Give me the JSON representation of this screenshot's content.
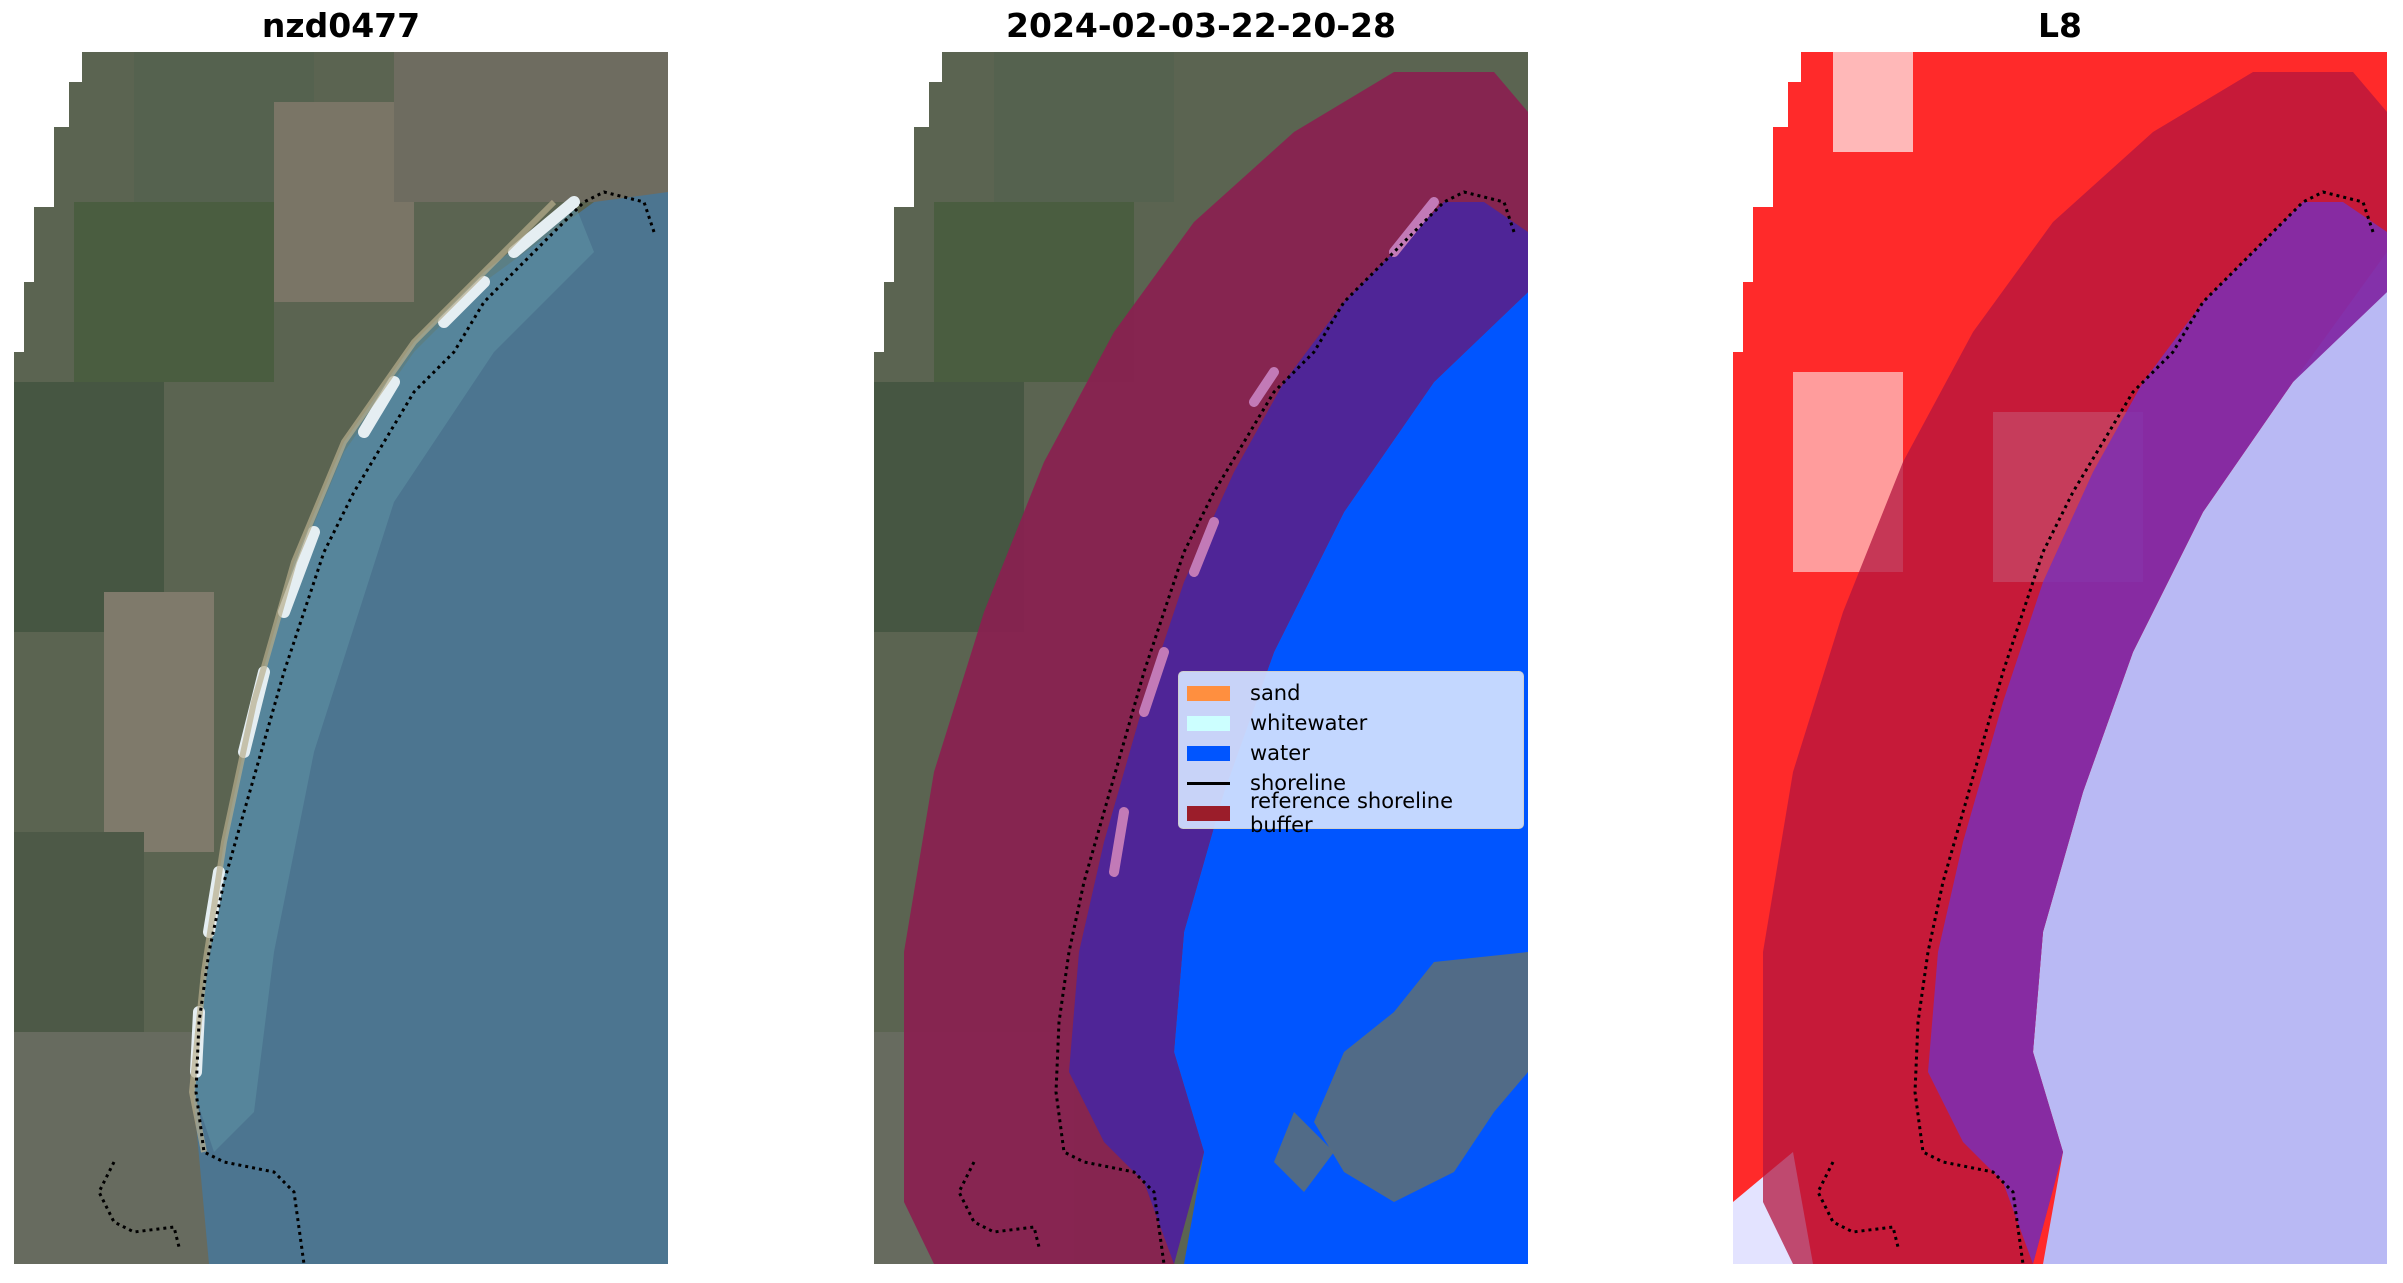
{
  "titles": {
    "left": "nzd0477",
    "middle": "2024-02-03-22-20-28",
    "right": "L8"
  },
  "legend": {
    "items": [
      {
        "label": "sand",
        "color": "#ff8f3f",
        "kind": "patch"
      },
      {
        "label": "whitewater",
        "color": "#ccffff",
        "kind": "patch"
      },
      {
        "label": "water",
        "color": "#0055ff",
        "kind": "patch"
      },
      {
        "label": "shoreline",
        "color": "#000000",
        "kind": "line"
      },
      {
        "label": "reference shoreline buffer",
        "color": "#9b1d2a",
        "kind": "patch"
      }
    ]
  },
  "colors": {
    "land_dark": "#4f5e46",
    "land_field": "#6f7564",
    "ocean": "#4f7590",
    "surf": "#d8e6ea",
    "buffer": "#8a2050",
    "classified_water": "#4f2597",
    "index_land": "#ff2a2a",
    "index_water": "#b9b9f4"
  }
}
